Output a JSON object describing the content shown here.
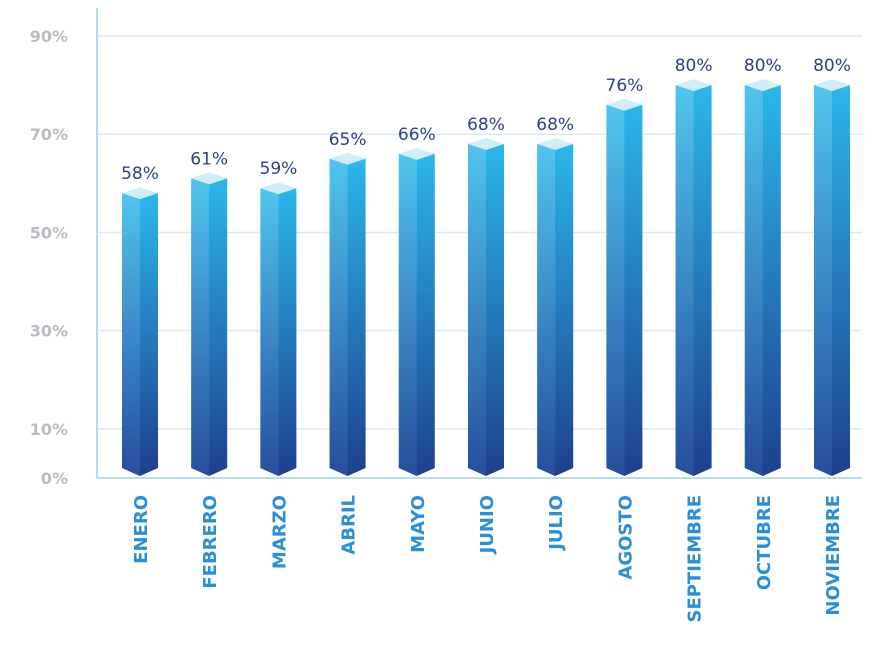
{
  "chart_data": {
    "type": "bar",
    "categories": [
      "ENERO",
      "FEBRERO",
      "MARZO",
      "ABRIL",
      "MAYO",
      "JUNIO",
      "JULIO",
      "AGOSTO",
      "SEPTIEMBRE",
      "OCTUBRE",
      "NOVIEMBRE"
    ],
    "values": [
      58,
      61,
      59,
      65,
      66,
      68,
      68,
      76,
      80,
      80,
      80
    ],
    "value_labels": [
      "58%",
      "61%",
      "59%",
      "65%",
      "66%",
      "68%",
      "68%",
      "76%",
      "80%",
      "80%",
      "80%"
    ],
    "y_ticks": [
      {
        "value": 0,
        "label": "0%"
      },
      {
        "value": 10,
        "label": "10%"
      },
      {
        "value": 30,
        "label": "30%"
      },
      {
        "value": 50,
        "label": "50%"
      },
      {
        "value": 70,
        "label": "70%"
      },
      {
        "value": 90,
        "label": "90%"
      }
    ],
    "ylim": [
      0,
      90
    ],
    "grid": true,
    "legend": "none",
    "colors": {
      "bar_top": "#2bb7ea",
      "bar_bottom": "#1e3f8e",
      "bar_cap": "#cfeefa",
      "grid": "#d6ecf5",
      "axis": "#b6dced",
      "value_label": "#2f3f86",
      "category_label": "#2a8fd6",
      "tick_label": "#b9bcc2"
    }
  }
}
